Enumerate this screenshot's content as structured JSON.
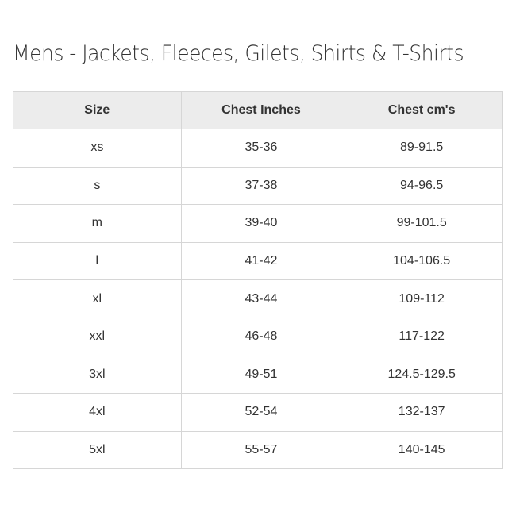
{
  "title": "Mens - Jackets, Fleeces, Gilets, Shirts & T-Shirts",
  "table": {
    "headers": [
      "Size",
      "Chest Inches",
      "Chest cm's"
    ],
    "rows": [
      [
        "xs",
        "35-36",
        "89-91.5"
      ],
      [
        "s",
        "37-38",
        "94-96.5"
      ],
      [
        "m",
        "39-40",
        "99-101.5"
      ],
      [
        "l",
        "41-42",
        "104-106.5"
      ],
      [
        "xl",
        "43-44",
        "109-112"
      ],
      [
        "xxl",
        "46-48",
        "117-122"
      ],
      [
        "3xl",
        "49-51",
        "124.5-129.5"
      ],
      [
        "4xl",
        "52-54",
        "132-137"
      ],
      [
        "5xl",
        "55-57",
        "140-145"
      ]
    ]
  }
}
